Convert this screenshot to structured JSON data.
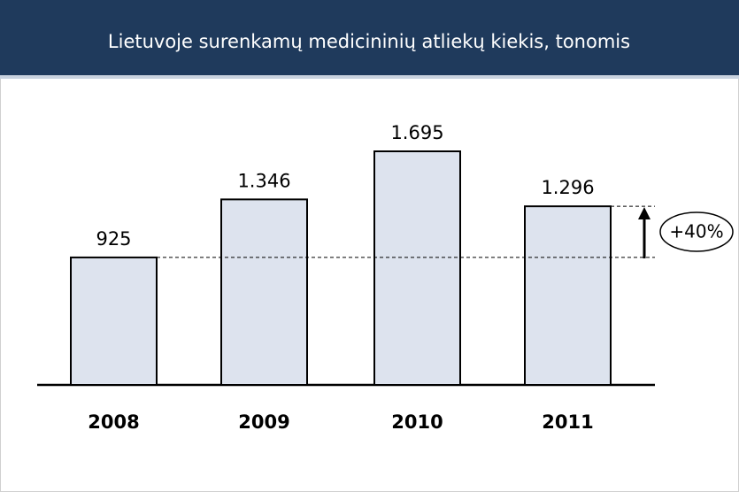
{
  "chart_data": {
    "type": "bar",
    "title": "Lietuvoje surenkamų medicininių atliekų kiekis, tonomis",
    "categories": [
      "2008",
      "2009",
      "2010",
      "2011"
    ],
    "values": [
      925,
      1346,
      1695,
      1296
    ],
    "value_labels": [
      "925",
      "1.346",
      "1.695",
      "1.296"
    ],
    "color": "#dde3ee",
    "annotation": "+40%"
  }
}
